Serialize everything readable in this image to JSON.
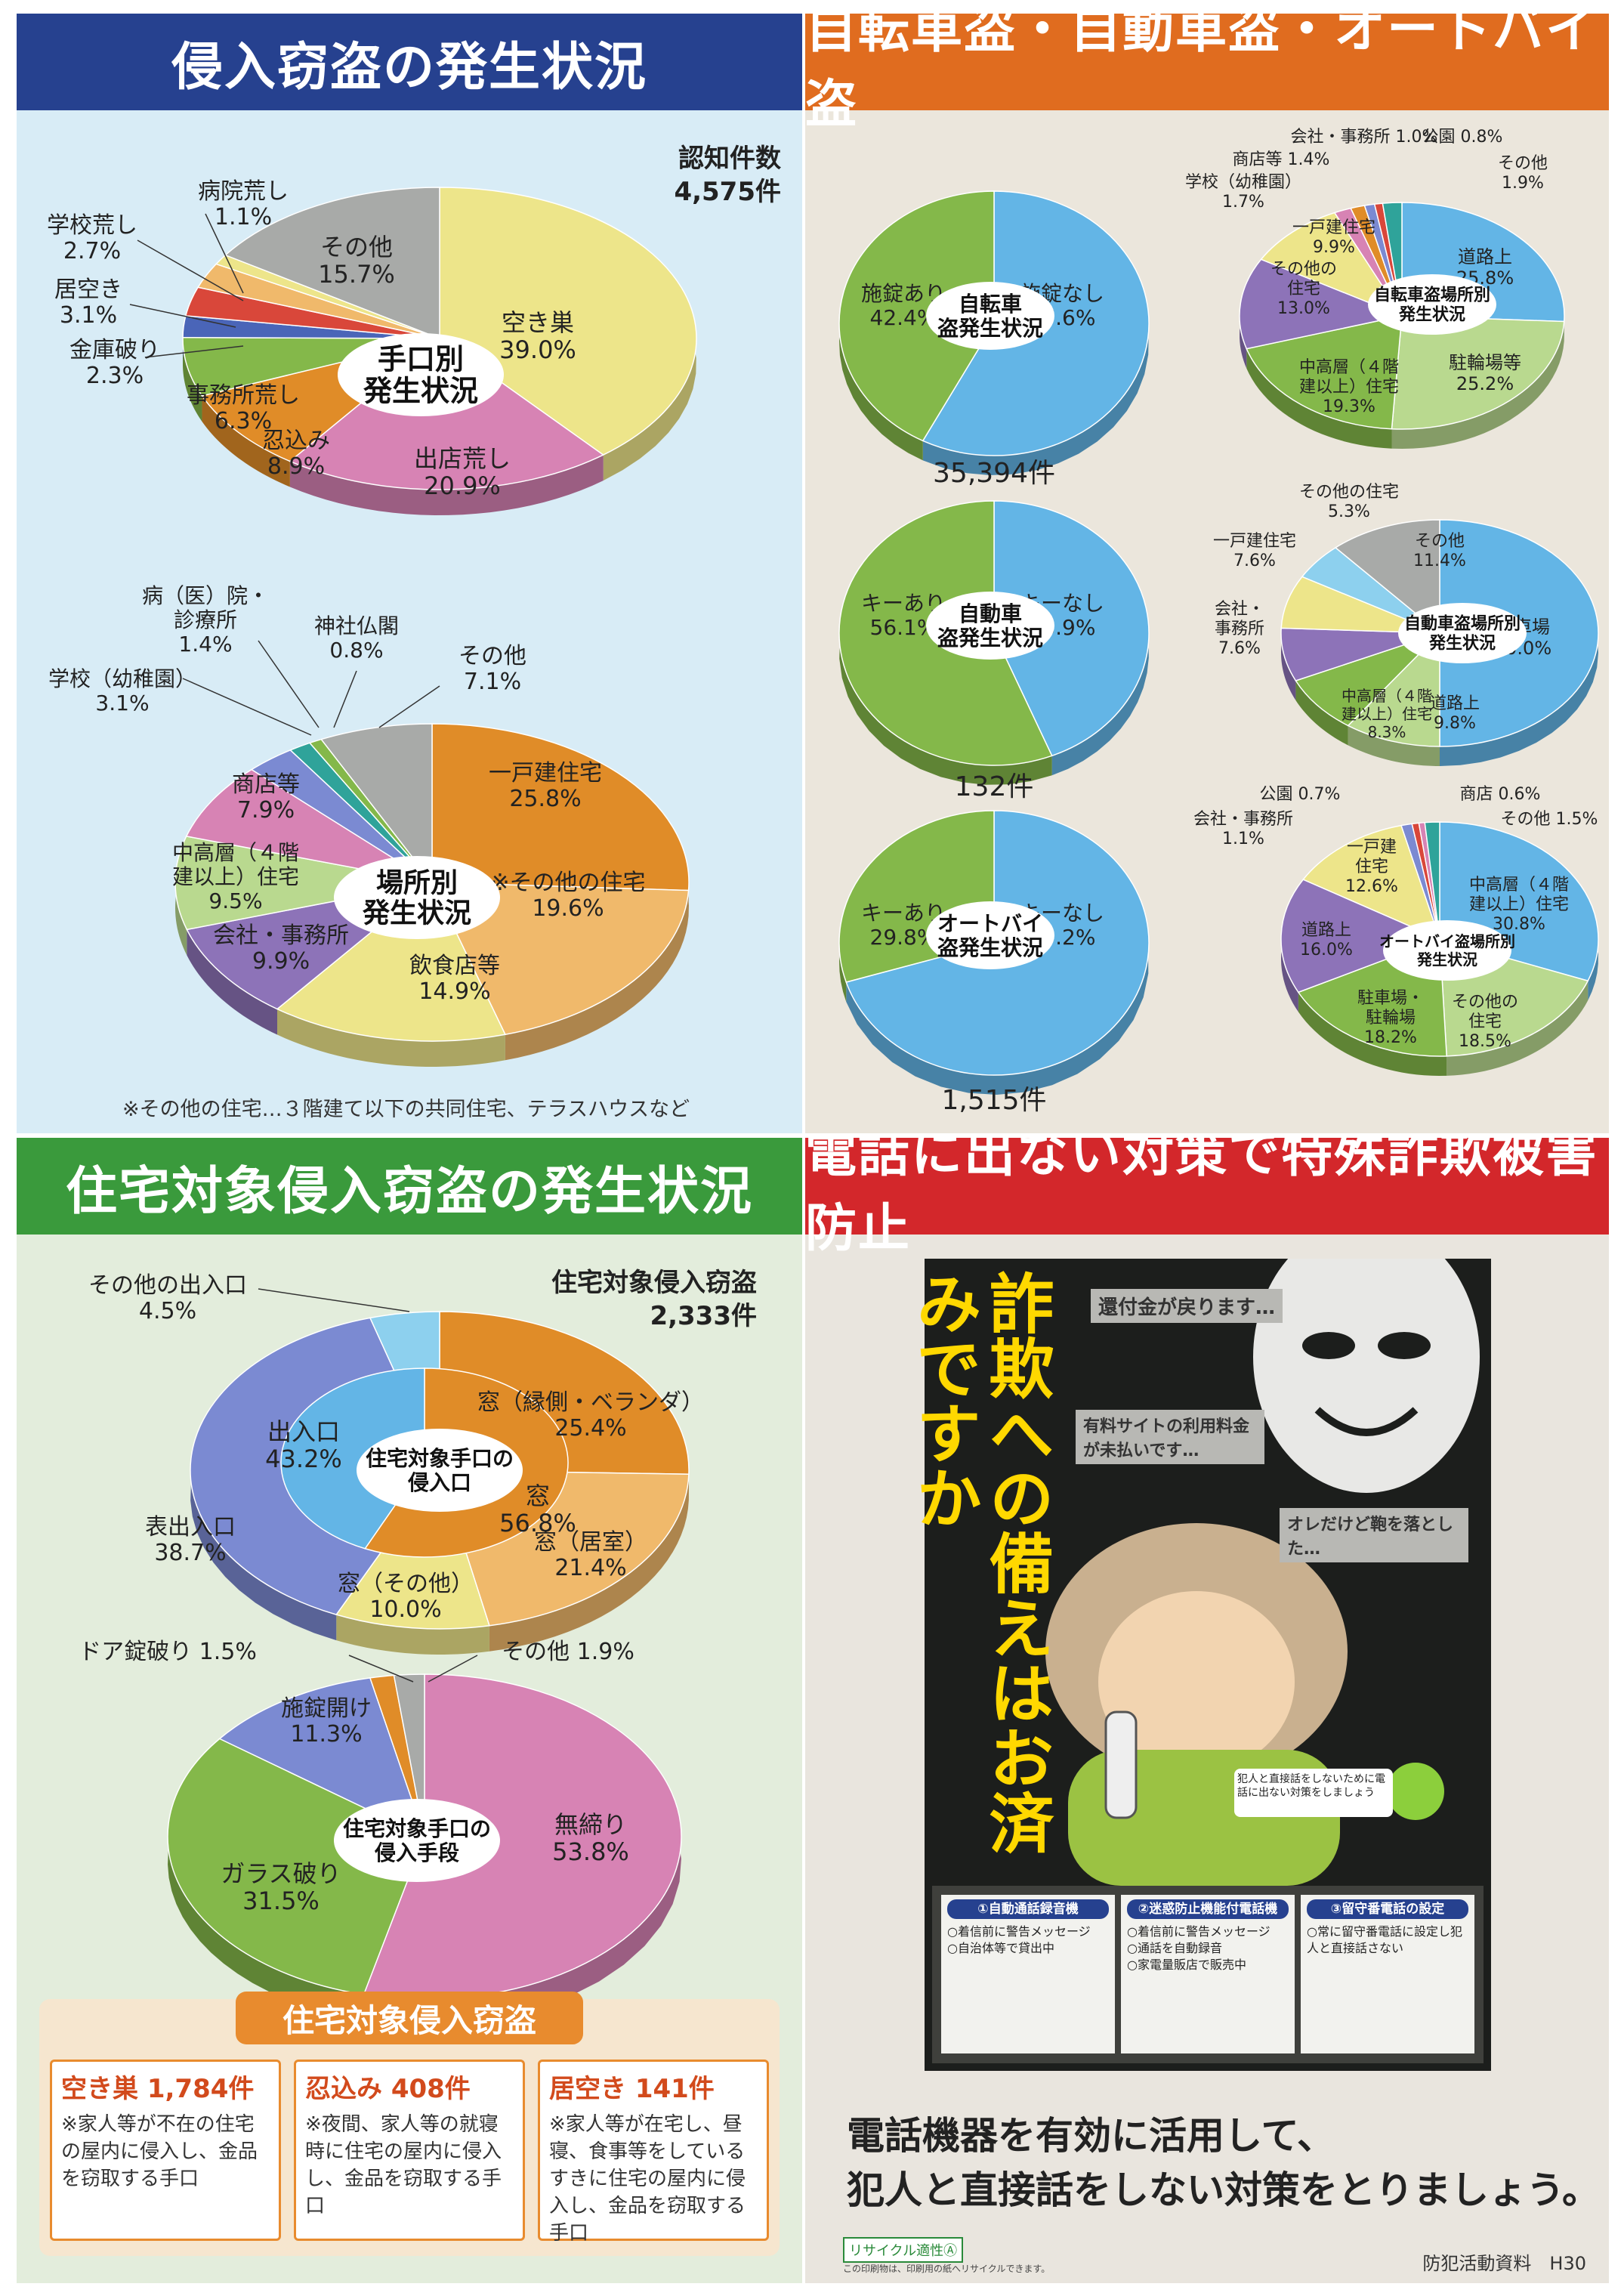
{
  "colors": {
    "blue": "#63b5e6",
    "green": "#84b84a",
    "yellow": "#ede58a",
    "pink": "#d783b4",
    "orange": "#e08c28",
    "purple": "#8d73b8",
    "gray": "#a8aaa8",
    "red": "#d9473a",
    "darkblue": "#4a65b8",
    "lightblue": "#8dd0ee",
    "lightorange": "#f0b96b",
    "teal": "#2fa39a",
    "lightgreen": "#b9d98f",
    "periwinkle": "#7b8ad2"
  },
  "sections": {
    "intrusion": {
      "title": "侵入窃盗の発生状況",
      "total_label": "認知件数",
      "total_value": "4,575件",
      "footnote": "※その他の住宅…３階建て以下の共同住宅、テラスハウスなど"
    },
    "vehicle": {
      "title": "自転車盗・自動車盗・オートバイ盗"
    },
    "residential": {
      "title": "住宅対象侵入窃盗の発生状況",
      "total_label": "住宅対象侵入窃盗",
      "total_value": "2,333件"
    },
    "fraud": {
      "title": "電話に出ない対策で特殊詐欺被害防止"
    }
  },
  "chart_data": [
    {
      "id": "method",
      "type": "pie",
      "title": "手口別発生状況",
      "slices": [
        {
          "label": "空き巣",
          "value": 39.0,
          "text": "39.0%",
          "color": "yellow"
        },
        {
          "label": "出店荒し",
          "value": 20.9,
          "text": "20.9%",
          "color": "pink"
        },
        {
          "label": "忍込み",
          "value": 8.9,
          "text": "8.9%",
          "color": "orange"
        },
        {
          "label": "事務所荒し",
          "value": 6.3,
          "text": "6.3%",
          "color": "green"
        },
        {
          "label": "金庫破り",
          "value": 2.3,
          "text": "2.3%",
          "color": "darkblue"
        },
        {
          "label": "居空き",
          "value": 3.1,
          "text": "3.1%",
          "color": "red"
        },
        {
          "label": "学校荒し",
          "value": 2.7,
          "text": "2.7%",
          "color": "lightorange"
        },
        {
          "label": "病院荒し",
          "value": 1.1,
          "text": "1.1%",
          "color": "yellow"
        },
        {
          "label": "その他",
          "value": 15.7,
          "text": "15.7%",
          "color": "gray"
        }
      ]
    },
    {
      "id": "place",
      "type": "pie",
      "title": "場所別発生状況",
      "slices": [
        {
          "label": "一戸建住宅",
          "value": 25.8,
          "text": "25.8%",
          "color": "orange"
        },
        {
          "label": "※その他の住宅",
          "value": 19.6,
          "text": "19.6%",
          "color": "lightorange"
        },
        {
          "label": "飲食店等",
          "value": 14.9,
          "text": "14.9%",
          "color": "yellow"
        },
        {
          "label": "会社・事務所",
          "value": 9.9,
          "text": "9.9%",
          "color": "purple"
        },
        {
          "label": "中高層（４階建以上）住宅",
          "value": 9.5,
          "text": "9.5%",
          "color": "lightgreen"
        },
        {
          "label": "商店等",
          "value": 7.9,
          "text": "7.9%",
          "color": "pink"
        },
        {
          "label": "学校（幼稚園）",
          "value": 3.1,
          "text": "3.1%",
          "color": "periwinkle"
        },
        {
          "label": "病（医）院・診療所",
          "value": 1.4,
          "text": "1.4%",
          "color": "teal"
        },
        {
          "label": "神社仏閣",
          "value": 0.8,
          "text": "0.8%",
          "color": "green"
        },
        {
          "label": "その他",
          "value": 7.1,
          "text": "7.1%",
          "color": "gray"
        }
      ]
    },
    {
      "id": "bicycle",
      "type": "pie",
      "title": "自転車盗発生状況",
      "total": "35,394件",
      "slices": [
        {
          "label": "施錠なし",
          "value": 57.6,
          "text": "57.6%",
          "color": "blue"
        },
        {
          "label": "施錠あり",
          "value": 42.4,
          "text": "42.4%",
          "color": "green"
        }
      ]
    },
    {
      "id": "bicycle_place",
      "type": "pie",
      "title": "自転車盗場所別発生状況",
      "slices": [
        {
          "label": "道路上",
          "value": 25.8,
          "text": "25.8%",
          "color": "blue"
        },
        {
          "label": "駐輪場等",
          "value": 25.2,
          "text": "25.2%",
          "color": "lightgreen"
        },
        {
          "label": "中高層（４階建以上）住宅",
          "value": 19.3,
          "text": "19.3%",
          "color": "green"
        },
        {
          "label": "その他の住宅",
          "value": 13.0,
          "text": "13.0%",
          "color": "purple"
        },
        {
          "label": "一戸建住宅",
          "value": 9.9,
          "text": "9.9%",
          "color": "yellow"
        },
        {
          "label": "学校（幼稚園）",
          "value": 1.7,
          "text": "1.7%",
          "color": "pink"
        },
        {
          "label": "商店等",
          "value": 1.4,
          "text": "1.4%",
          "color": "orange"
        },
        {
          "label": "会社・事務所",
          "value": 1.0,
          "text": "1.0%",
          "color": "periwinkle"
        },
        {
          "label": "公園",
          "value": 0.8,
          "text": "0.8%",
          "color": "red"
        },
        {
          "label": "その他",
          "value": 1.9,
          "text": "1.9%",
          "color": "teal"
        }
      ]
    },
    {
      "id": "car",
      "type": "pie",
      "title": "自動車盗発生状況",
      "total": "132件",
      "slices": [
        {
          "label": "キーなし",
          "value": 43.9,
          "text": "43.9%",
          "color": "blue"
        },
        {
          "label": "キーあり",
          "value": 56.1,
          "text": "56.1%",
          "color": "green"
        }
      ]
    },
    {
      "id": "car_place",
      "type": "pie",
      "title": "自動車盗場所別発生状況",
      "slices": [
        {
          "label": "駐車場",
          "value": 50.0,
          "text": "50.0%",
          "color": "blue"
        },
        {
          "label": "道路上",
          "value": 9.8,
          "text": "9.8%",
          "color": "lightgreen"
        },
        {
          "label": "中高層（４階建以上）住宅",
          "value": 8.3,
          "text": "8.3%",
          "color": "green"
        },
        {
          "label": "会社・事務所",
          "value": 7.6,
          "text": "7.6%",
          "color": "purple"
        },
        {
          "label": "一戸建住宅",
          "value": 7.6,
          "text": "7.6%",
          "color": "yellow"
        },
        {
          "label": "その他の住宅",
          "value": 5.3,
          "text": "5.3%",
          "color": "lightblue"
        },
        {
          "label": "その他",
          "value": 11.4,
          "text": "11.4%",
          "color": "gray"
        }
      ]
    },
    {
      "id": "motorcycle",
      "type": "pie",
      "title": "オートバイ盗発生状況",
      "total": "1,515件",
      "slices": [
        {
          "label": "キーなし",
          "value": 70.2,
          "text": "70.2%",
          "color": "blue"
        },
        {
          "label": "キーあり",
          "value": 29.8,
          "text": "29.8%",
          "color": "green"
        }
      ]
    },
    {
      "id": "motorcycle_place",
      "type": "pie",
      "title": "オートバイ盗場所別発生状況",
      "slices": [
        {
          "label": "中高層（４階建以上）住宅",
          "value": 30.8,
          "text": "30.8%",
          "color": "blue"
        },
        {
          "label": "その他の住宅",
          "value": 18.5,
          "text": "18.5%",
          "color": "lightgreen"
        },
        {
          "label": "駐車場・駐輪場",
          "value": 18.2,
          "text": "18.2%",
          "color": "green"
        },
        {
          "label": "道路上",
          "value": 16.0,
          "text": "16.0%",
          "color": "purple"
        },
        {
          "label": "一戸建住宅",
          "value": 12.6,
          "text": "12.6%",
          "color": "yellow"
        },
        {
          "label": "会社・事務所",
          "value": 1.1,
          "text": "1.1%",
          "color": "periwinkle"
        },
        {
          "label": "公園",
          "value": 0.7,
          "text": "0.7%",
          "color": "red"
        },
        {
          "label": "商店",
          "value": 0.6,
          "text": "0.6%",
          "color": "pink"
        },
        {
          "label": "その他",
          "value": 1.5,
          "text": "1.5%",
          "color": "teal"
        }
      ]
    },
    {
      "id": "entry_point",
      "type": "pie",
      "title": "住宅対象手口の侵入口",
      "inner": [
        {
          "label": "窓",
          "value": 56.8,
          "text": "56.8%",
          "color": "orange"
        },
        {
          "label": "出入口",
          "value": 43.2,
          "text": "43.2%",
          "color": "blue"
        }
      ],
      "slices": [
        {
          "label": "窓（縁側・ベランダ）",
          "value": 25.4,
          "text": "25.4%",
          "color": "orange"
        },
        {
          "label": "窓（居室）",
          "value": 21.4,
          "text": "21.4%",
          "color": "lightorange"
        },
        {
          "label": "窓（その他）",
          "value": 10.0,
          "text": "10.0%",
          "color": "yellow"
        },
        {
          "label": "表出入口",
          "value": 38.7,
          "text": "38.7%",
          "color": "periwinkle"
        },
        {
          "label": "その他の出入口",
          "value": 4.5,
          "text": "4.5%",
          "color": "lightblue"
        }
      ]
    },
    {
      "id": "entry_means",
      "type": "pie",
      "title": "住宅対象手口の侵入手段",
      "slices": [
        {
          "label": "無締り",
          "value": 53.8,
          "text": "53.8%",
          "color": "pink"
        },
        {
          "label": "ガラス破り",
          "value": 31.5,
          "text": "31.5%",
          "color": "green"
        },
        {
          "label": "施錠開け",
          "value": 11.3,
          "text": "11.3%",
          "color": "periwinkle"
        },
        {
          "label": "ドア錠破り",
          "value": 1.5,
          "text": "1.5%",
          "color": "orange"
        },
        {
          "label": "その他",
          "value": 1.9,
          "text": "1.9%",
          "color": "gray"
        }
      ]
    }
  ],
  "residential_table": {
    "title": "住宅対象侵入窃盗",
    "items": [
      {
        "head": "空き巣 1,784件",
        "desc": "※家人等が不在の住宅の屋内に侵入し、金品を窃取する手口"
      },
      {
        "head": "忍込み 408件",
        "desc": "※夜間、家人等の就寝時に住宅の屋内に侵入し、金品を窃取する手口"
      },
      {
        "head": "居空き 141件",
        "desc": "※家人等が在宅し、昼寝、食事等をしているすきに住宅の屋内に侵入し、金品を窃取する手口"
      }
    ]
  },
  "poster": {
    "vertical_title": "詐欺への備えはお済みですか",
    "bubbles": [
      "還付金が戻ります…",
      "有料サイトの利用料金が未払いです…",
      "オレだけど鞄を落とした…"
    ],
    "callout": "犯人と直接話をしないために電話に出ない対策をしましょう",
    "panels": [
      {
        "head": "①自動通話録音機",
        "lines": [
          "○着信前に警告メッセージ",
          "○自治体等で貸出中"
        ]
      },
      {
        "head": "②迷惑防止機能付電話機",
        "lines": [
          "○着信前に警告メッセージ",
          "○通話を自動録音",
          "○家電量販店で販売中"
        ]
      },
      {
        "head": "③留守番電話の設定",
        "lines": [
          "○常に留守番電話に設定し犯人と直接話さない"
        ]
      }
    ]
  },
  "fraud_slogan": [
    "電話機器を有効に活用して、",
    "犯人と直接話をしない対策をとりましょう。"
  ],
  "recycle_label": "リサイクル適性Ⓐ",
  "recycle_note": "この印刷物は、印刷用の紙へリサイクルできます。",
  "footer_note": "防犯活動資料　H30"
}
